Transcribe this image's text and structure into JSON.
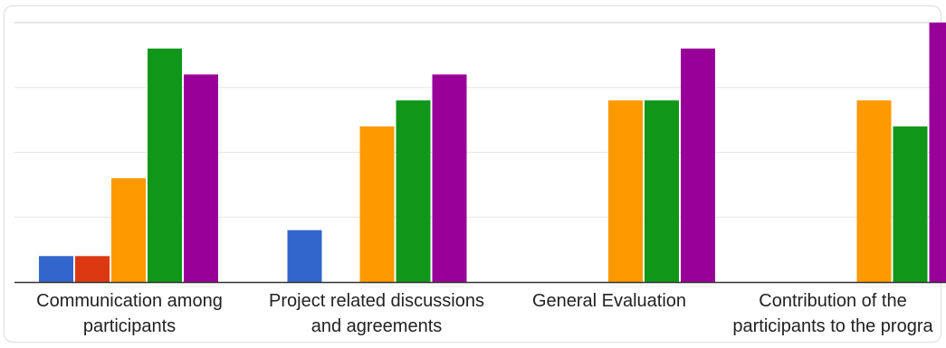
{
  "chart_data": {
    "type": "bar",
    "categories": [
      [
        "Communication among",
        "participants"
      ],
      [
        "Project related discussions",
        "and agreements"
      ],
      [
        "General Evaluation"
      ],
      [
        "Contribution of the",
        "participants to the progra"
      ]
    ],
    "series": [
      {
        "color": "#3366cc",
        "values": [
          1,
          2,
          0,
          0
        ]
      },
      {
        "color": "#dc3912",
        "values": [
          1,
          0,
          0,
          0
        ]
      },
      {
        "color": "#ff9900",
        "values": [
          4,
          6,
          7,
          7
        ]
      },
      {
        "color": "#109618",
        "values": [
          9,
          7,
          7,
          6
        ]
      },
      {
        "color": "#990099",
        "values": [
          8,
          8,
          9,
          10
        ]
      }
    ],
    "ylim": [
      0,
      10
    ],
    "grid": true,
    "legend": "none"
  }
}
